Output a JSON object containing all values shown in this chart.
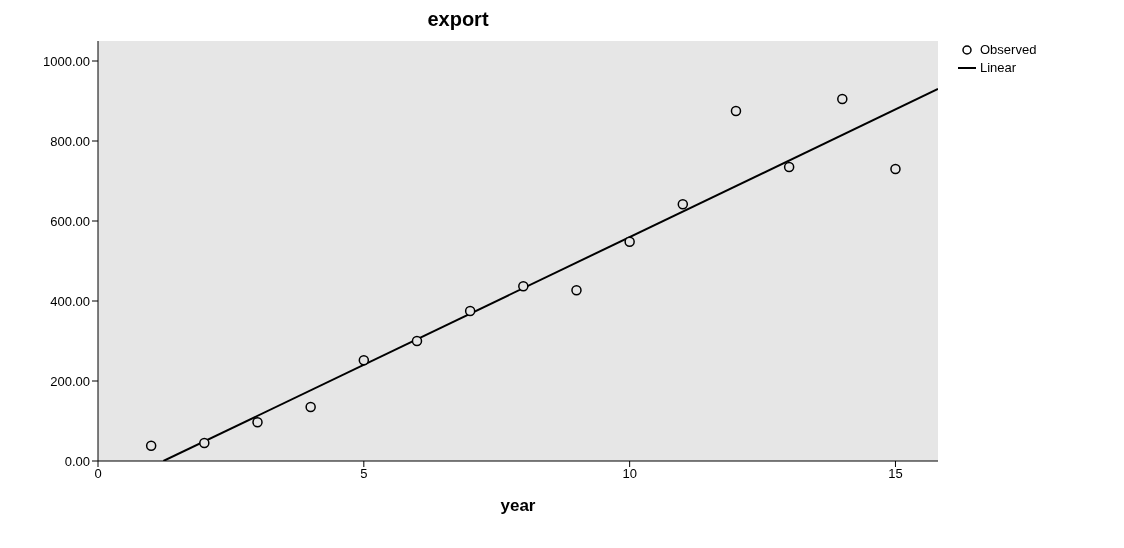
{
  "chart_data": {
    "type": "scatter",
    "title": "export",
    "xlabel": "year",
    "xlim": [
      0,
      15.8
    ],
    "xticks": [
      0,
      5,
      10,
      15
    ],
    "ylim": [
      0,
      1050
    ],
    "yticks": [
      {
        "value": 0,
        "label": "0.00"
      },
      {
        "value": 200,
        "label": "200.00"
      },
      {
        "value": 400,
        "label": "400.00"
      },
      {
        "value": 600,
        "label": "600.00"
      },
      {
        "value": 800,
        "label": "800.00"
      },
      {
        "value": 1000,
        "label": "1000.00"
      }
    ],
    "grid": false,
    "legend": "top right",
    "series": [
      {
        "name": "Observed",
        "marker": "circle",
        "color": "#000000",
        "x": [
          1,
          2,
          3,
          4,
          5,
          6,
          7,
          8,
          9,
          10,
          11,
          12,
          13,
          14,
          15
        ],
        "values": [
          38,
          45,
          97,
          135,
          252,
          300,
          375,
          437,
          427,
          548,
          642,
          875,
          735,
          905,
          730
        ]
      },
      {
        "name": "Linear",
        "type": "line",
        "marker": "none",
        "color": "#000000",
        "line_style": "solid",
        "x": [
          1.23,
          15.8
        ],
        "values": [
          0,
          930
        ]
      }
    ]
  }
}
